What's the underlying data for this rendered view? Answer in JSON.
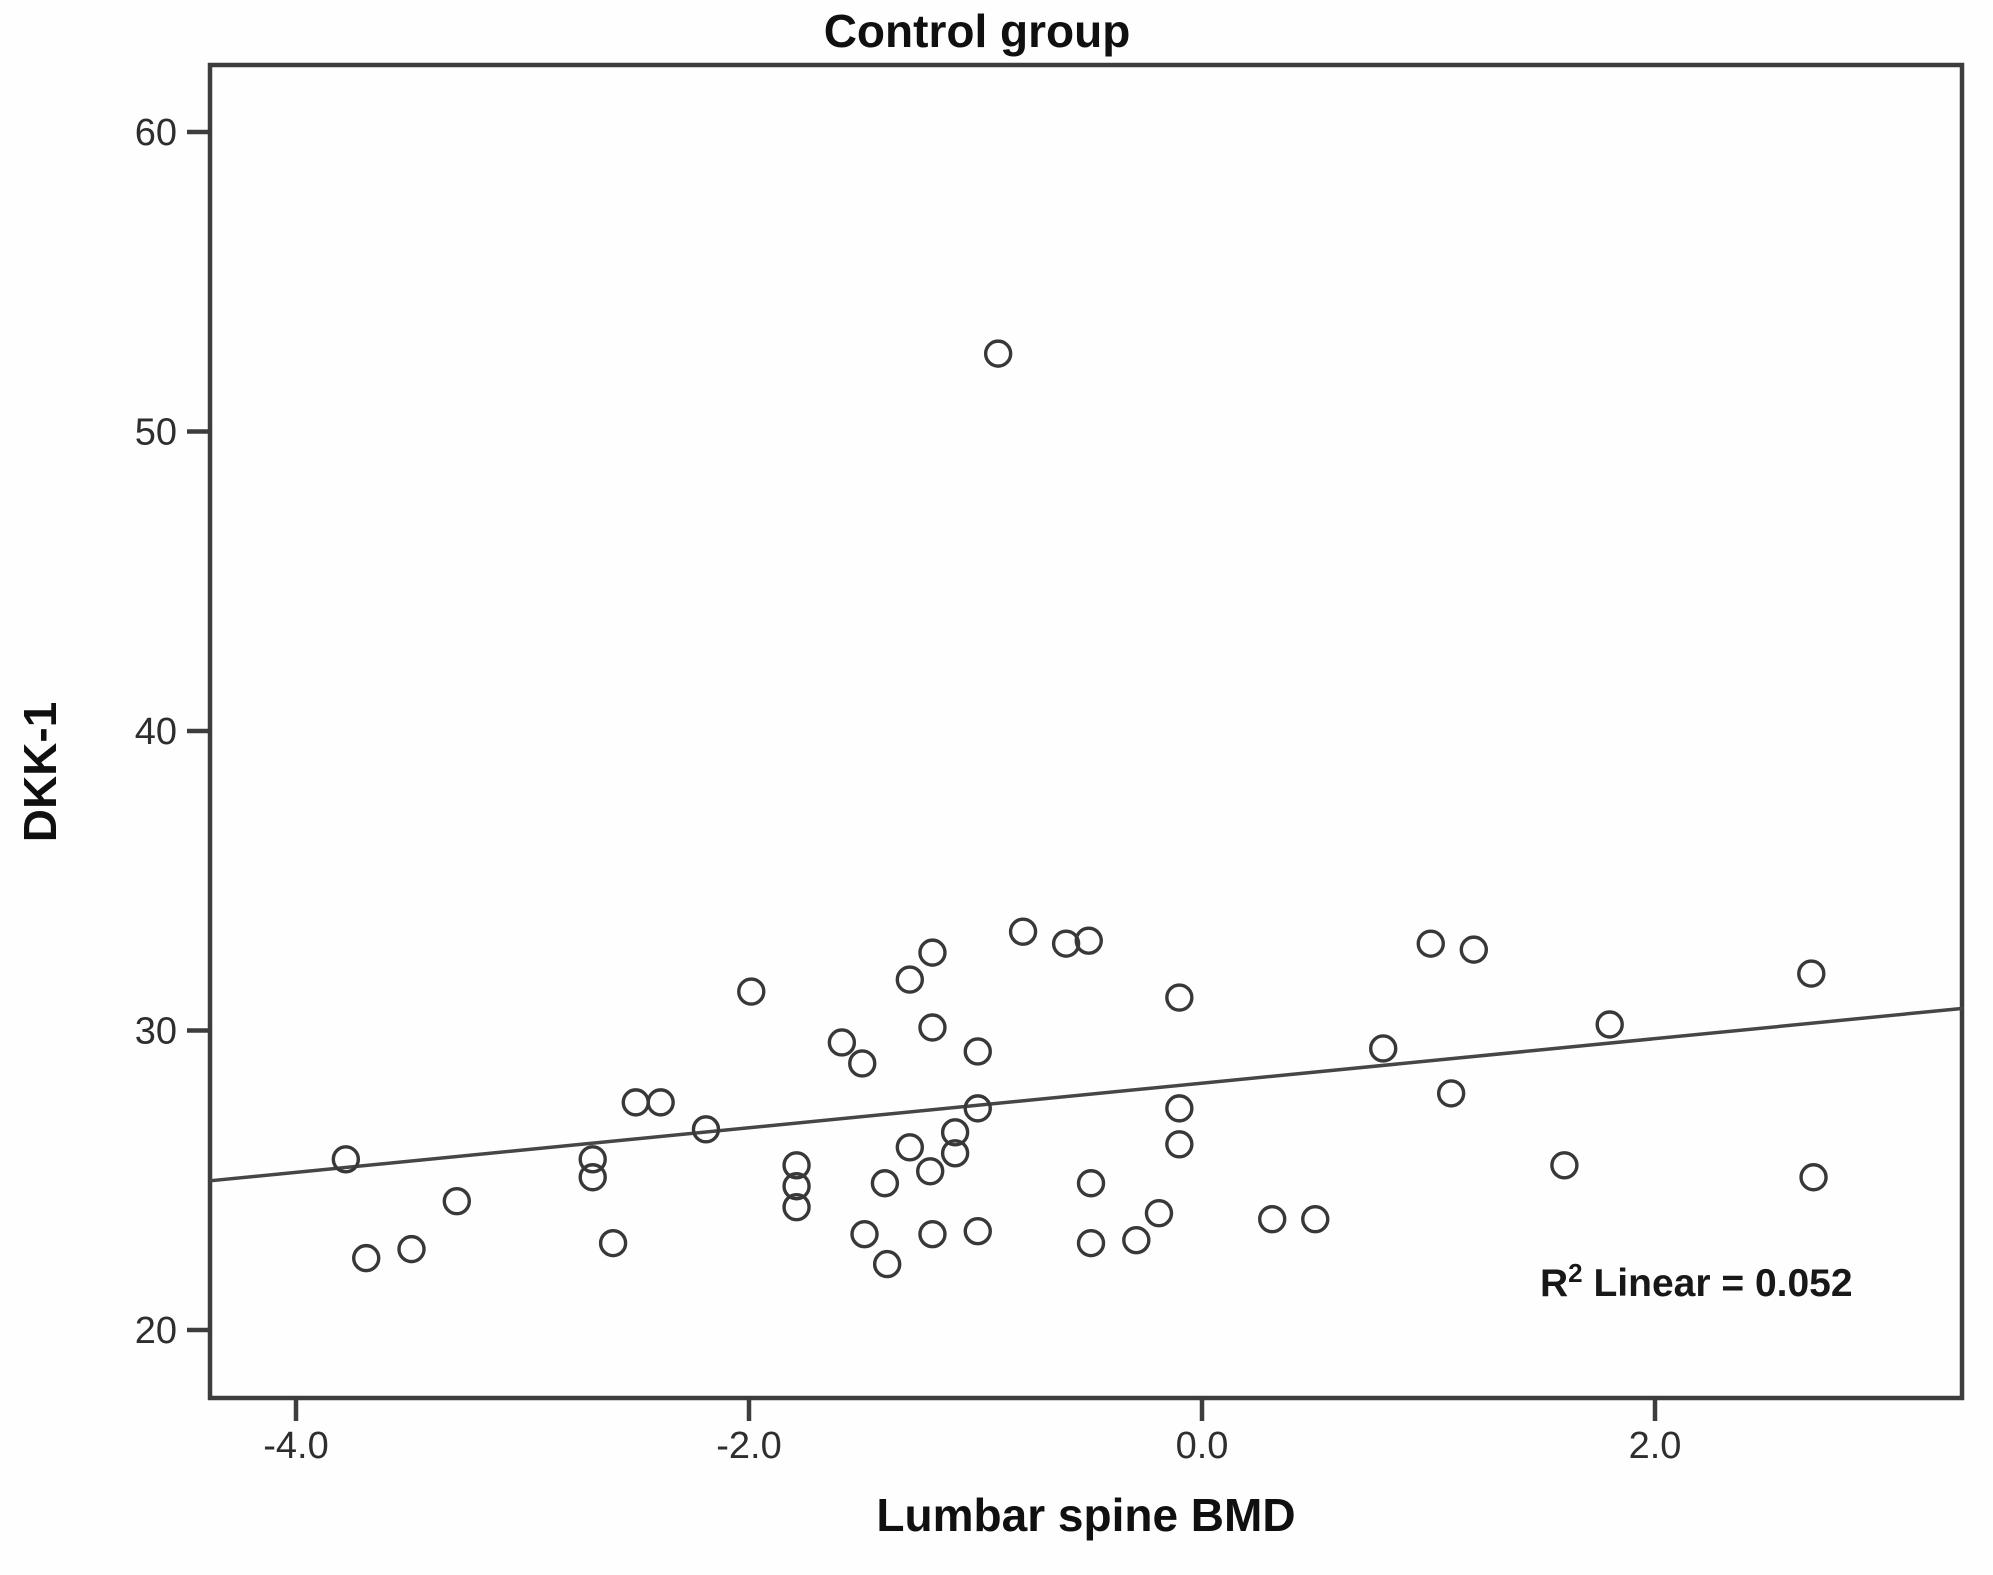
{
  "chart_data": {
    "type": "scatter",
    "title": "Control group",
    "xlabel": "Lumbar spine BMD",
    "ylabel": "DKK-1",
    "marker": "open-circle",
    "grid": false,
    "legend": null,
    "x_ticks": [
      -4.0,
      -2.0,
      0.0,
      2.0
    ],
    "x_tick_labels": [
      "-4.0",
      "-2.0",
      "0.0",
      "2.0"
    ],
    "y_ticks": [
      20,
      30,
      40,
      50,
      60
    ],
    "y_tick_labels": [
      "20",
      "30",
      "40",
      "50",
      "60"
    ],
    "x_range": [
      -4.38,
      3.36
    ],
    "y_range": [
      17.7,
      62.3
    ],
    "r2_annotation": {
      "base": "R",
      "sup": "2",
      "rest": " Linear = 0.052"
    },
    "trend_line": {
      "slope": 0.744,
      "intercept": 28.24,
      "r_squared": 0.052
    },
    "points": [
      [
        -3.78,
        25.7
      ],
      [
        -3.69,
        22.4
      ],
      [
        -3.49,
        22.7
      ],
      [
        -3.29,
        24.3
      ],
      [
        -2.69,
        25.7
      ],
      [
        -2.69,
        25.1
      ],
      [
        -2.6,
        22.9
      ],
      [
        -2.5,
        27.6
      ],
      [
        -2.39,
        27.6
      ],
      [
        -2.19,
        26.7
      ],
      [
        -1.99,
        31.3
      ],
      [
        -1.79,
        25.5
      ],
      [
        -1.79,
        24.8
      ],
      [
        -1.79,
        24.1
      ],
      [
        -1.59,
        29.6
      ],
      [
        -1.5,
        28.9
      ],
      [
        -1.49,
        23.2
      ],
      [
        -1.4,
        24.9
      ],
      [
        -1.39,
        22.2
      ],
      [
        -1.29,
        31.7
      ],
      [
        -1.29,
        26.1
      ],
      [
        -1.2,
        25.3
      ],
      [
        -1.19,
        32.6
      ],
      [
        -1.19,
        30.1
      ],
      [
        -1.19,
        23.2
      ],
      [
        -1.09,
        26.6
      ],
      [
        -1.09,
        25.9
      ],
      [
        -0.99,
        29.3
      ],
      [
        -0.99,
        27.4
      ],
      [
        -0.99,
        23.3
      ],
      [
        -0.9,
        52.6
      ],
      [
        -0.79,
        33.3
      ],
      [
        -0.6,
        32.9
      ],
      [
        -0.5,
        33.0
      ],
      [
        -0.49,
        24.9
      ],
      [
        -0.49,
        22.9
      ],
      [
        -0.29,
        23.0
      ],
      [
        -0.19,
        23.9
      ],
      [
        -0.1,
        31.1
      ],
      [
        -0.1,
        27.4
      ],
      [
        -0.1,
        26.2
      ],
      [
        0.31,
        23.7
      ],
      [
        0.5,
        23.7
      ],
      [
        0.8,
        29.4
      ],
      [
        1.01,
        32.9
      ],
      [
        1.1,
        27.9
      ],
      [
        1.2,
        32.7
      ],
      [
        1.6,
        25.5
      ],
      [
        1.8,
        30.2
      ],
      [
        2.69,
        31.9
      ],
      [
        2.7,
        25.1
      ]
    ]
  }
}
